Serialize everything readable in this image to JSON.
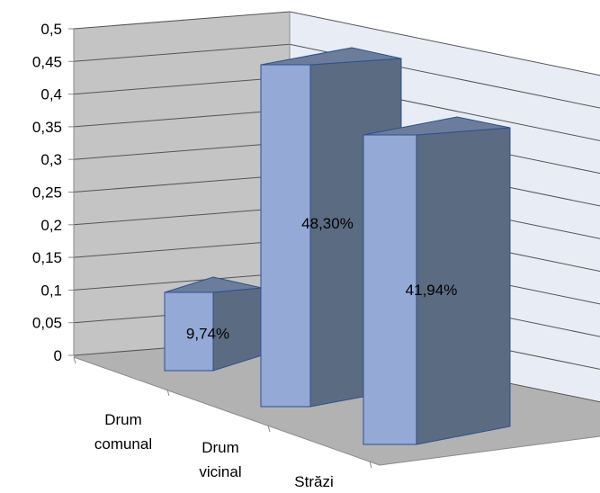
{
  "chart_data": {
    "type": "bar",
    "categories": [
      "Drum comunal",
      "Drum vicinal",
      "Străzi"
    ],
    "category_lines": [
      [
        "Drum",
        "comunal"
      ],
      [
        "Drum",
        "vicinal"
      ],
      [
        "Străzi"
      ]
    ],
    "values": [
      0.0974,
      0.483,
      0.4194
    ],
    "data_labels": [
      "9,74%",
      "48,30%",
      "41,94%"
    ],
    "y_ticks": [
      "0",
      "0,05",
      "0,1",
      "0,15",
      "0,2",
      "0,25",
      "0,3",
      "0,35",
      "0,4",
      "0,45",
      "0,5"
    ],
    "ylim": [
      0,
      0.5
    ],
    "title": "",
    "xlabel": "",
    "ylabel": "",
    "grid": true,
    "legend": "none",
    "style": "3d-column",
    "colors": {
      "bar_front": "#95a9d6",
      "bar_side": "#5b6b82",
      "bar_top": "#6b7d9b",
      "bar_edge": "#2f4f8f",
      "back_wall": "#e8ecf5",
      "side_wall": "#c4c4c4",
      "floor": "#b2b2b2",
      "grid": "#555555"
    }
  }
}
